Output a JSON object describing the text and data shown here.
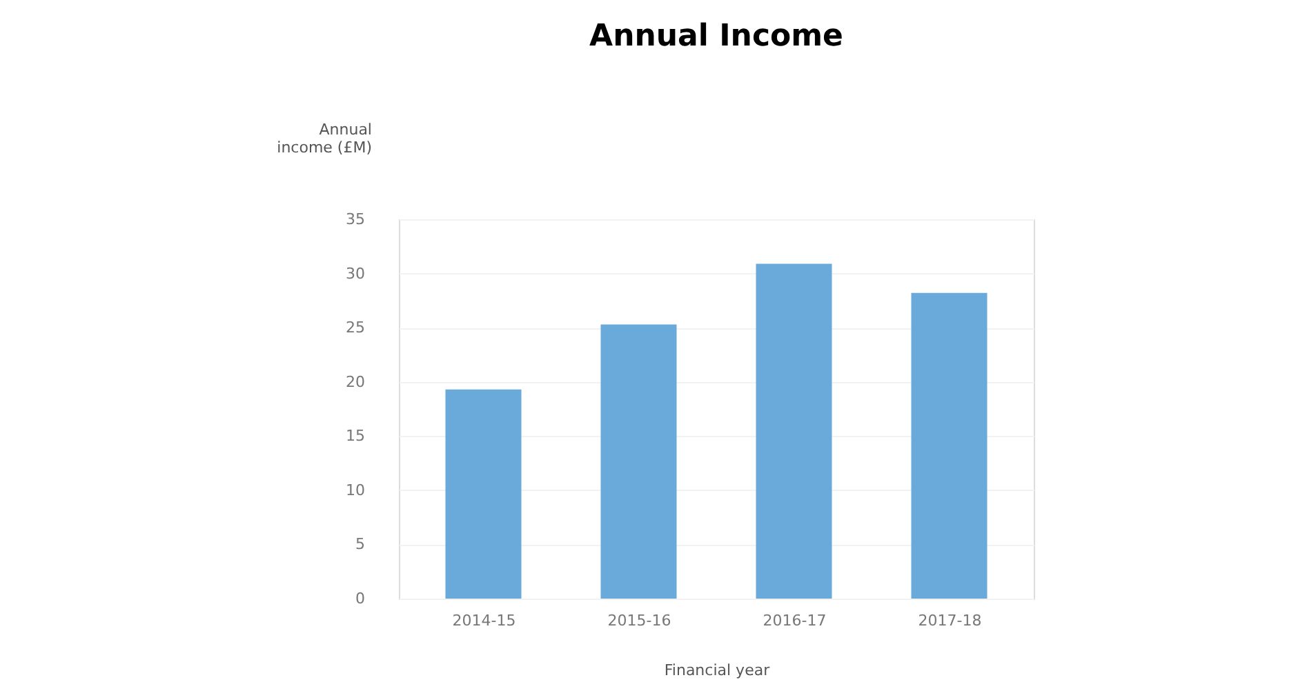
{
  "chart_data": {
    "type": "bar",
    "title": "Annual Income",
    "xlabel": "Financial year",
    "ylabel": "Annual income (£M)",
    "categories": [
      "2014-15",
      "2015-16",
      "2016-17",
      "2017-18"
    ],
    "values": [
      19.3,
      25.3,
      30.9,
      28.2
    ],
    "color": "#6aaadb",
    "ylim": [
      0,
      35
    ],
    "yticks": [
      0,
      5,
      10,
      15,
      20,
      25,
      30,
      35
    ],
    "grid": "y"
  }
}
